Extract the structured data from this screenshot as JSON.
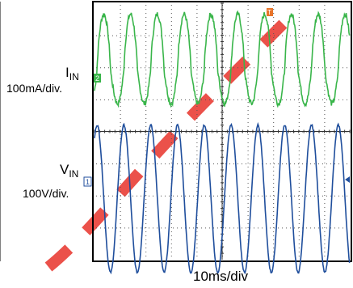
{
  "chart_data": {
    "type": "line",
    "xlabel": "10ms/div",
    "grid": true,
    "x_divisions": 10,
    "y_divisions": 8,
    "trigger_marker": "T",
    "channel_markers": [
      "2",
      "1"
    ],
    "series": [
      {
        "name": "IN",
        "full_label": "I_IN",
        "scale": "100mA/div.",
        "color": "#39b54a",
        "waveform": "rectified-sine-like current",
        "period_ms": 10.5,
        "peak_div": 1.85,
        "trough_div": -1.2
      },
      {
        "name": "IN",
        "full_label": "V_IN",
        "scale": "100V/div.",
        "color": "#1f4e9c",
        "waveform": "sine voltage",
        "period_ms": 10.5,
        "amplitude_div": 2.3
      }
    ]
  },
  "labels": {
    "i_main": "I",
    "i_sub": "IN",
    "i_scale": "100mA/div.",
    "v_main": "V",
    "v_sub": "IN",
    "v_scale": "100V/div.",
    "time_scale": "10ms/div"
  },
  "colors": {
    "current": "#39b54a",
    "voltage": "#1f4e9c",
    "watermark": "#e8332a",
    "trigger": "#e8742a"
  }
}
